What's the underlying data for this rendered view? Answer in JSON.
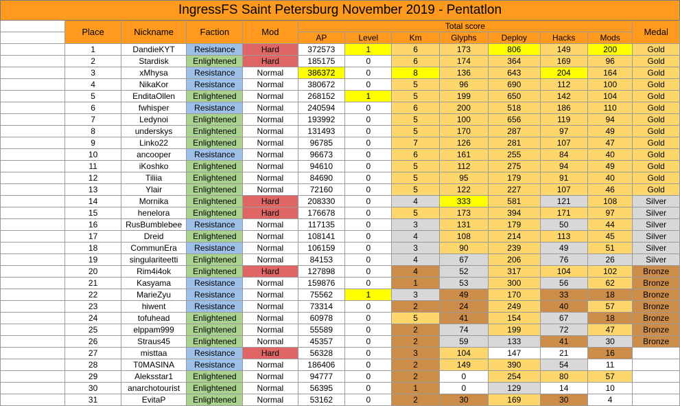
{
  "title": "IngressFS Saint Petersburg November 2019 - Pentatlon",
  "headers": {
    "place": "Place",
    "nickname": "Nickname",
    "faction": "Faction",
    "mod": "Mod",
    "total_score": "Total score",
    "ap": "AP",
    "level": "Level",
    "km": "Km",
    "glyphs": "Glyphs",
    "deploy": "Deploy",
    "hacks": "Hacks",
    "mods": "Mods",
    "medal": "Medal"
  },
  "colors": {
    "header": "#ff9a1f",
    "gold": "#fdd66c",
    "silver": "#d8d8d8",
    "bronze": "#cd8d4a",
    "yellow_highlight": "#ffff00",
    "resistance": "#9dc0e9",
    "enlightened": "#a8d28d",
    "hard": "#e06666"
  },
  "score_columns": [
    "level",
    "km",
    "glyphs",
    "deploy",
    "hacks",
    "mods"
  ],
  "rows": [
    {
      "place": "1",
      "nickname": "DandieKYT",
      "faction": "Resistance",
      "mod": "Hard",
      "ap": "372573",
      "level": "1",
      "km": "6",
      "glyphs": "173",
      "deploy": "806",
      "hacks": "149",
      "mods": "200",
      "medal": "Gold",
      "ap_bg": "w",
      "bg": {
        "level": "y",
        "km": "g",
        "glyphs": "g",
        "deploy": "y",
        "hacks": "g",
        "mods": "y"
      }
    },
    {
      "place": "2",
      "nickname": "Stardisk",
      "faction": "Enlightened",
      "mod": "Hard",
      "ap": "185175",
      "level": "0",
      "km": "6",
      "glyphs": "174",
      "deploy": "364",
      "hacks": "169",
      "mods": "96",
      "medal": "Gold",
      "ap_bg": "w",
      "bg": {
        "level": "w",
        "km": "g",
        "glyphs": "g",
        "deploy": "g",
        "hacks": "g",
        "mods": "g"
      }
    },
    {
      "place": "3",
      "nickname": "xMhysa",
      "faction": "Resistance",
      "mod": "Normal",
      "ap": "386372",
      "level": "0",
      "km": "8",
      "glyphs": "136",
      "deploy": "643",
      "hacks": "204",
      "mods": "164",
      "medal": "Gold",
      "ap_bg": "y",
      "bg": {
        "level": "w",
        "km": "y",
        "glyphs": "g",
        "deploy": "g",
        "hacks": "y",
        "mods": "g"
      }
    },
    {
      "place": "4",
      "nickname": "NikaKor",
      "faction": "Resistance",
      "mod": "Normal",
      "ap": "380672",
      "level": "0",
      "km": "5",
      "glyphs": "96",
      "deploy": "690",
      "hacks": "112",
      "mods": "100",
      "medal": "Gold",
      "ap_bg": "w",
      "bg": {
        "level": "w",
        "km": "g",
        "glyphs": "g",
        "deploy": "g",
        "hacks": "g",
        "mods": "g"
      }
    },
    {
      "place": "5",
      "nickname": "EnditaOllen",
      "faction": "Enlightened",
      "mod": "Normal",
      "ap": "268152",
      "level": "1",
      "km": "5",
      "glyphs": "199",
      "deploy": "650",
      "hacks": "142",
      "mods": "104",
      "medal": "Gold",
      "ap_bg": "w",
      "bg": {
        "level": "y",
        "km": "g",
        "glyphs": "g",
        "deploy": "g",
        "hacks": "g",
        "mods": "g"
      }
    },
    {
      "place": "6",
      "nickname": "fwhisper",
      "faction": "Resistance",
      "mod": "Normal",
      "ap": "240594",
      "level": "0",
      "km": "6",
      "glyphs": "200",
      "deploy": "518",
      "hacks": "186",
      "mods": "110",
      "medal": "Gold",
      "ap_bg": "w",
      "bg": {
        "level": "w",
        "km": "g",
        "glyphs": "g",
        "deploy": "g",
        "hacks": "g",
        "mods": "g"
      }
    },
    {
      "place": "7",
      "nickname": "Ledynoi",
      "faction": "Enlightened",
      "mod": "Normal",
      "ap": "193992",
      "level": "0",
      "km": "5",
      "glyphs": "100",
      "deploy": "656",
      "hacks": "119",
      "mods": "94",
      "medal": "Gold",
      "ap_bg": "w",
      "bg": {
        "level": "w",
        "km": "g",
        "glyphs": "g",
        "deploy": "g",
        "hacks": "g",
        "mods": "g"
      }
    },
    {
      "place": "8",
      "nickname": "underskys",
      "faction": "Enlightened",
      "mod": "Normal",
      "ap": "131493",
      "level": "0",
      "km": "5",
      "glyphs": "170",
      "deploy": "287",
      "hacks": "97",
      "mods": "49",
      "medal": "Gold",
      "ap_bg": "w",
      "bg": {
        "level": "w",
        "km": "g",
        "glyphs": "g",
        "deploy": "g",
        "hacks": "g",
        "mods": "g"
      }
    },
    {
      "place": "9",
      "nickname": "Linko22",
      "faction": "Enlightened",
      "mod": "Normal",
      "ap": "96785",
      "level": "0",
      "km": "7",
      "glyphs": "126",
      "deploy": "281",
      "hacks": "107",
      "mods": "47",
      "medal": "Gold",
      "ap_bg": "w",
      "bg": {
        "level": "w",
        "km": "g",
        "glyphs": "g",
        "deploy": "g",
        "hacks": "g",
        "mods": "g"
      }
    },
    {
      "place": "10",
      "nickname": "ancooper",
      "faction": "Resistance",
      "mod": "Normal",
      "ap": "96673",
      "level": "0",
      "km": "6",
      "glyphs": "161",
      "deploy": "255",
      "hacks": "84",
      "mods": "40",
      "medal": "Gold",
      "ap_bg": "w",
      "bg": {
        "level": "w",
        "km": "g",
        "glyphs": "g",
        "deploy": "g",
        "hacks": "g",
        "mods": "g"
      }
    },
    {
      "place": "11",
      "nickname": "iKoshko",
      "faction": "Enlightened",
      "mod": "Normal",
      "ap": "94610",
      "level": "0",
      "km": "5",
      "glyphs": "112",
      "deploy": "275",
      "hacks": "94",
      "mods": "49",
      "medal": "Gold",
      "ap_bg": "w",
      "bg": {
        "level": "w",
        "km": "g",
        "glyphs": "g",
        "deploy": "g",
        "hacks": "g",
        "mods": "g"
      }
    },
    {
      "place": "12",
      "nickname": "Tiliia",
      "faction": "Enlightened",
      "mod": "Normal",
      "ap": "84690",
      "level": "0",
      "km": "5",
      "glyphs": "95",
      "deploy": "179",
      "hacks": "91",
      "mods": "40",
      "medal": "Gold",
      "ap_bg": "w",
      "bg": {
        "level": "w",
        "km": "g",
        "glyphs": "g",
        "deploy": "g",
        "hacks": "g",
        "mods": "g"
      }
    },
    {
      "place": "13",
      "nickname": "Ylair",
      "faction": "Enlightened",
      "mod": "Normal",
      "ap": "72160",
      "level": "0",
      "km": "5",
      "glyphs": "122",
      "deploy": "227",
      "hacks": "107",
      "mods": "46",
      "medal": "Gold",
      "ap_bg": "w",
      "bg": {
        "level": "w",
        "km": "g",
        "glyphs": "g",
        "deploy": "g",
        "hacks": "g",
        "mods": "g"
      }
    },
    {
      "place": "14",
      "nickname": "Mornika",
      "faction": "Enlightened",
      "mod": "Hard",
      "ap": "208330",
      "level": "0",
      "km": "4",
      "glyphs": "333",
      "deploy": "581",
      "hacks": "121",
      "mods": "108",
      "medal": "Silver",
      "ap_bg": "w",
      "bg": {
        "level": "w",
        "km": "s",
        "glyphs": "y",
        "deploy": "g",
        "hacks": "s",
        "mods": "g"
      }
    },
    {
      "place": "15",
      "nickname": "henelora",
      "faction": "Enlightened",
      "mod": "Hard",
      "ap": "176678",
      "level": "0",
      "km": "5",
      "glyphs": "173",
      "deploy": "394",
      "hacks": "171",
      "mods": "97",
      "medal": "Silver",
      "ap_bg": "w",
      "bg": {
        "level": "w",
        "km": "g",
        "glyphs": "g",
        "deploy": "g",
        "hacks": "g",
        "mods": "g"
      }
    },
    {
      "place": "16",
      "nickname": "RusBumblebee",
      "faction": "Resistance",
      "mod": "Normal",
      "ap": "117135",
      "level": "0",
      "km": "3",
      "glyphs": "131",
      "deploy": "179",
      "hacks": "50",
      "mods": "44",
      "medal": "Silver",
      "ap_bg": "w",
      "bg": {
        "level": "w",
        "km": "s",
        "glyphs": "g",
        "deploy": "g",
        "hacks": "s",
        "mods": "g"
      }
    },
    {
      "place": "17",
      "nickname": "Dreid",
      "faction": "Enlightened",
      "mod": "Normal",
      "ap": "108141",
      "level": "0",
      "km": "4",
      "glyphs": "108",
      "deploy": "214",
      "hacks": "113",
      "mods": "45",
      "medal": "Silver",
      "ap_bg": "w",
      "bg": {
        "level": "w",
        "km": "s",
        "glyphs": "g",
        "deploy": "g",
        "hacks": "g",
        "mods": "g"
      }
    },
    {
      "place": "18",
      "nickname": "CommunEra",
      "faction": "Resistance",
      "mod": "Normal",
      "ap": "106159",
      "level": "0",
      "km": "3",
      "glyphs": "90",
      "deploy": "239",
      "hacks": "49",
      "mods": "51",
      "medal": "Silver",
      "ap_bg": "w",
      "bg": {
        "level": "w",
        "km": "s",
        "glyphs": "g",
        "deploy": "g",
        "hacks": "s",
        "mods": "g"
      }
    },
    {
      "place": "19",
      "nickname": "singulariteetti",
      "faction": "Enlightened",
      "mod": "Normal",
      "ap": "84153",
      "level": "0",
      "km": "4",
      "glyphs": "67",
      "deploy": "206",
      "hacks": "76",
      "mods": "26",
      "medal": "Silver",
      "ap_bg": "w",
      "bg": {
        "level": "w",
        "km": "s",
        "glyphs": "s",
        "deploy": "g",
        "hacks": "s",
        "mods": "s"
      }
    },
    {
      "place": "20",
      "nickname": "Rim4i4ok",
      "faction": "Enlightened",
      "mod": "Hard",
      "ap": "127898",
      "level": "0",
      "km": "4",
      "glyphs": "52",
      "deploy": "317",
      "hacks": "104",
      "mods": "102",
      "medal": "Bronze",
      "ap_bg": "w",
      "bg": {
        "level": "w",
        "km": "b",
        "glyphs": "s",
        "deploy": "g",
        "hacks": "g",
        "mods": "g"
      }
    },
    {
      "place": "21",
      "nickname": "Kasyama",
      "faction": "Resistance",
      "mod": "Normal",
      "ap": "159876",
      "level": "0",
      "km": "1",
      "glyphs": "53",
      "deploy": "300",
      "hacks": "56",
      "mods": "62",
      "medal": "Bronze",
      "ap_bg": "w",
      "bg": {
        "level": "w",
        "km": "b",
        "glyphs": "s",
        "deploy": "g",
        "hacks": "s",
        "mods": "g"
      }
    },
    {
      "place": "22",
      "nickname": "MarieZyu",
      "faction": "Resistance",
      "mod": "Normal",
      "ap": "75562",
      "level": "1",
      "km": "3",
      "glyphs": "49",
      "deploy": "170",
      "hacks": "33",
      "mods": "18",
      "medal": "Bronze",
      "ap_bg": "w",
      "bg": {
        "level": "y",
        "km": "s",
        "glyphs": "b",
        "deploy": "g",
        "hacks": "b",
        "mods": "b"
      }
    },
    {
      "place": "23",
      "nickname": "hiwent",
      "faction": "Resistance",
      "mod": "Normal",
      "ap": "73314",
      "level": "0",
      "km": "2",
      "glyphs": "24",
      "deploy": "249",
      "hacks": "40",
      "mods": "57",
      "medal": "Bronze",
      "ap_bg": "w",
      "bg": {
        "level": "w",
        "km": "b",
        "glyphs": "b",
        "deploy": "g",
        "hacks": "b",
        "mods": "g"
      }
    },
    {
      "place": "24",
      "nickname": "tofuhead",
      "faction": "Enlightened",
      "mod": "Normal",
      "ap": "60978",
      "level": "0",
      "km": "5",
      "glyphs": "41",
      "deploy": "154",
      "hacks": "67",
      "mods": "18",
      "medal": "Bronze",
      "ap_bg": "w",
      "bg": {
        "level": "w",
        "km": "g",
        "glyphs": "b",
        "deploy": "g",
        "hacks": "s",
        "mods": "b"
      }
    },
    {
      "place": "25",
      "nickname": "elppam999",
      "faction": "Enlightened",
      "mod": "Normal",
      "ap": "55589",
      "level": "0",
      "km": "2",
      "glyphs": "74",
      "deploy": "199",
      "hacks": "72",
      "mods": "47",
      "medal": "Bronze",
      "ap_bg": "w",
      "bg": {
        "level": "w",
        "km": "b",
        "glyphs": "s",
        "deploy": "g",
        "hacks": "s",
        "mods": "g"
      }
    },
    {
      "place": "26",
      "nickname": "Straus45",
      "faction": "Enlightened",
      "mod": "Normal",
      "ap": "45357",
      "level": "0",
      "km": "2",
      "glyphs": "59",
      "deploy": "133",
      "hacks": "41",
      "mods": "30",
      "medal": "Bronze",
      "ap_bg": "w",
      "bg": {
        "level": "w",
        "km": "b",
        "glyphs": "s",
        "deploy": "s",
        "hacks": "b",
        "mods": "s"
      }
    },
    {
      "place": "27",
      "nickname": "misttaa",
      "faction": "Resistance",
      "mod": "Hard",
      "ap": "56328",
      "level": "0",
      "km": "3",
      "glyphs": "104",
      "deploy": "147",
      "hacks": "21",
      "mods": "16",
      "medal": "",
      "ap_bg": "w",
      "bg": {
        "level": "w",
        "km": "b",
        "glyphs": "g",
        "deploy": "w",
        "hacks": "w",
        "mods": "b"
      }
    },
    {
      "place": "28",
      "nickname": "T0MASINA",
      "faction": "Resistance",
      "mod": "Normal",
      "ap": "186406",
      "level": "0",
      "km": "2",
      "glyphs": "149",
      "deploy": "390",
      "hacks": "54",
      "mods": "11",
      "medal": "",
      "ap_bg": "w",
      "bg": {
        "level": "w",
        "km": "b",
        "glyphs": "g",
        "deploy": "g",
        "hacks": "s",
        "mods": "w"
      }
    },
    {
      "place": "29",
      "nickname": "Aleksstar1",
      "faction": "Enlightened",
      "mod": "Normal",
      "ap": "94777",
      "level": "0",
      "km": "2",
      "glyphs": "0",
      "deploy": "254",
      "hacks": "80",
      "mods": "57",
      "medal": "",
      "ap_bg": "w",
      "bg": {
        "level": "w",
        "km": "b",
        "glyphs": "w",
        "deploy": "g",
        "hacks": "g",
        "mods": "g"
      }
    },
    {
      "place": "30",
      "nickname": "anarchotourist",
      "faction": "Enlightened",
      "mod": "Normal",
      "ap": "56395",
      "level": "0",
      "km": "1",
      "glyphs": "0",
      "deploy": "129",
      "hacks": "14",
      "mods": "10",
      "medal": "",
      "ap_bg": "w",
      "bg": {
        "level": "w",
        "km": "b",
        "glyphs": "w",
        "deploy": "s",
        "hacks": "w",
        "mods": "w"
      }
    },
    {
      "place": "31",
      "nickname": "EvitaP",
      "faction": "Enlightened",
      "mod": "Normal",
      "ap": "53162",
      "level": "0",
      "km": "2",
      "glyphs": "30",
      "deploy": "169",
      "hacks": "30",
      "mods": "4",
      "medal": "",
      "ap_bg": "w",
      "bg": {
        "level": "w",
        "km": "b",
        "glyphs": "b",
        "deploy": "g",
        "hacks": "b",
        "mods": "w"
      }
    }
  ]
}
